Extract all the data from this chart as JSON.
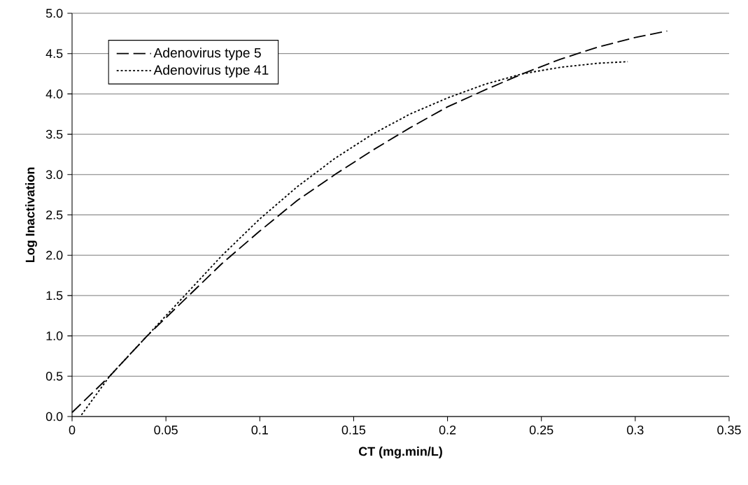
{
  "chart_data": {
    "type": "line",
    "xlabel": "CT (mg.min/L)",
    "ylabel": "Log Inactivation",
    "series": [
      {
        "name": "Adenovirus type 5",
        "color": "#000000",
        "line_style": "dashed",
        "x": [
          0,
          0.02,
          0.04,
          0.06,
          0.08,
          0.1,
          0.12,
          0.14,
          0.16,
          0.18,
          0.2,
          0.22,
          0.24,
          0.26,
          0.28,
          0.3,
          0.317
        ],
        "values": [
          0.05,
          0.5,
          1.0,
          1.45,
          1.9,
          2.3,
          2.68,
          3.0,
          3.3,
          3.58,
          3.84,
          4.05,
          4.25,
          4.43,
          4.58,
          4.7,
          4.78
        ]
      },
      {
        "name": "Adenovirus type 41",
        "color": "#000000",
        "line_style": "dotted",
        "x": [
          0.005,
          0.02,
          0.04,
          0.06,
          0.08,
          0.1,
          0.12,
          0.14,
          0.16,
          0.18,
          0.2,
          0.22,
          0.24,
          0.26,
          0.28,
          0.296
        ],
        "values": [
          0.02,
          0.5,
          1.0,
          1.5,
          2.0,
          2.45,
          2.85,
          3.2,
          3.5,
          3.75,
          3.95,
          4.12,
          4.25,
          4.33,
          4.38,
          4.4
        ]
      }
    ],
    "xlim": [
      0,
      0.35
    ],
    "ylim": [
      0,
      5
    ],
    "xticks": [
      0,
      0.05,
      0.1,
      0.15,
      0.2,
      0.25,
      0.3,
      0.35
    ],
    "yticks": [
      {
        "value": 0,
        "label": "0.0"
      },
      {
        "value": 0.5,
        "label": "0.5"
      },
      {
        "value": 1,
        "label": "1.0"
      },
      {
        "value": 1.5,
        "label": "1.5"
      },
      {
        "value": 2,
        "label": "2.0"
      },
      {
        "value": 2.5,
        "label": "2.5"
      },
      {
        "value": 3,
        "label": "3.0"
      },
      {
        "value": 3.5,
        "label": "3.5"
      },
      {
        "value": 4,
        "label": "4.0"
      },
      {
        "value": 4.5,
        "label": "4.5"
      },
      {
        "value": 5,
        "label": "5.0"
      }
    ],
    "grid": "y",
    "legend": "top left",
    "marker": "none"
  }
}
